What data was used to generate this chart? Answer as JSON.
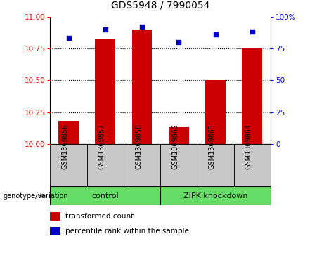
{
  "title": "GDS5948 / 7990054",
  "samples": [
    "GSM1369856",
    "GSM1369857",
    "GSM1369858",
    "GSM1369862",
    "GSM1369863",
    "GSM1369864"
  ],
  "bar_values": [
    10.18,
    10.82,
    10.9,
    10.13,
    10.5,
    10.75
  ],
  "scatter_values": [
    83,
    90,
    92,
    80,
    86,
    88
  ],
  "ylim_left": [
    10,
    11
  ],
  "ylim_right": [
    0,
    100
  ],
  "yticks_left": [
    10,
    10.25,
    10.5,
    10.75,
    11
  ],
  "yticks_right": [
    0,
    25,
    50,
    75,
    100
  ],
  "ytick_right_labels": [
    "0",
    "25",
    "50",
    "75",
    "100%"
  ],
  "bar_color": "#cc0000",
  "scatter_color": "#0000cc",
  "legend_bar_label": "transformed count",
  "legend_scatter_label": "percentile rank within the sample",
  "bar_width": 0.55,
  "tick_area_color": "#c8c8c8",
  "group_area_color": "#66dd66",
  "control_label": "control",
  "zipk_label": "ZIPK knockdown",
  "geno_label": "genotype/variation"
}
